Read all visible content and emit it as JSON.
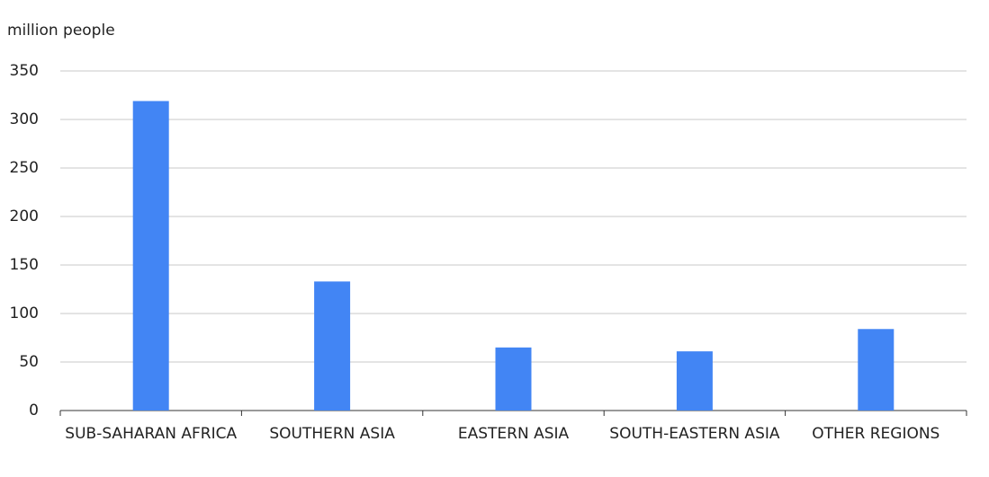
{
  "chart_data": {
    "type": "bar",
    "y_label": "million people",
    "categories": [
      "SUB-SAHARAN AFRICA",
      "SOUTHERN ASIA",
      "EASTERN ASIA",
      "SOUTH-EASTERN ASIA",
      "OTHER REGIONS"
    ],
    "values": [
      319,
      133,
      65,
      61,
      84
    ],
    "color": "#4285f4",
    "ylim": [
      0,
      350
    ],
    "yticks": [
      0,
      50,
      100,
      150,
      200,
      250,
      300,
      350
    ],
    "grid": true
  }
}
